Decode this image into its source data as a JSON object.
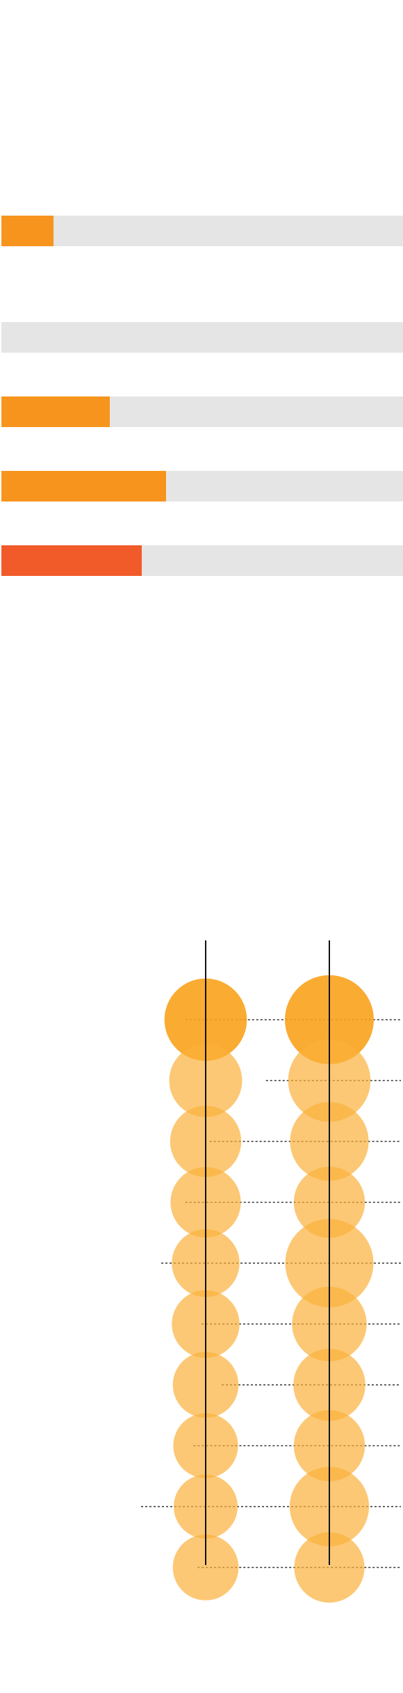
{
  "chart_data": [
    {
      "type": "bar",
      "orientation": "horizontal",
      "value_range": [
        0,
        100
      ],
      "bars": [
        {
          "value": 13,
          "color": "#f7941d"
        },
        {
          "value": 0,
          "color": "#f7941d"
        },
        {
          "value": 27,
          "color": "#f7941d"
        },
        {
          "value": 41,
          "color": "#f7941d"
        },
        {
          "value": 35,
          "color": "#f15a29"
        }
      ],
      "track_color": "#e5e5e5"
    },
    {
      "type": "scatter",
      "subtype": "bubble",
      "columns": 2,
      "rows": 10,
      "series": [
        {
          "values": [
            55,
            43,
            41,
            40,
            37,
            37,
            35,
            34,
            33,
            35
          ]
        },
        {
          "values": [
            64,
            55,
            50,
            41,
            63,
            45,
            42,
            41,
            51,
            40
          ]
        }
      ],
      "row_line_extent": [
        0.46,
        0.66,
        0.52,
        0.46,
        0.4,
        0.5,
        0.55,
        0.48,
        0.35,
        0.49
      ],
      "bubble_color": "#fbb03b",
      "highlight_color": "#faa21b",
      "highlight_rows": [
        0
      ]
    }
  ]
}
